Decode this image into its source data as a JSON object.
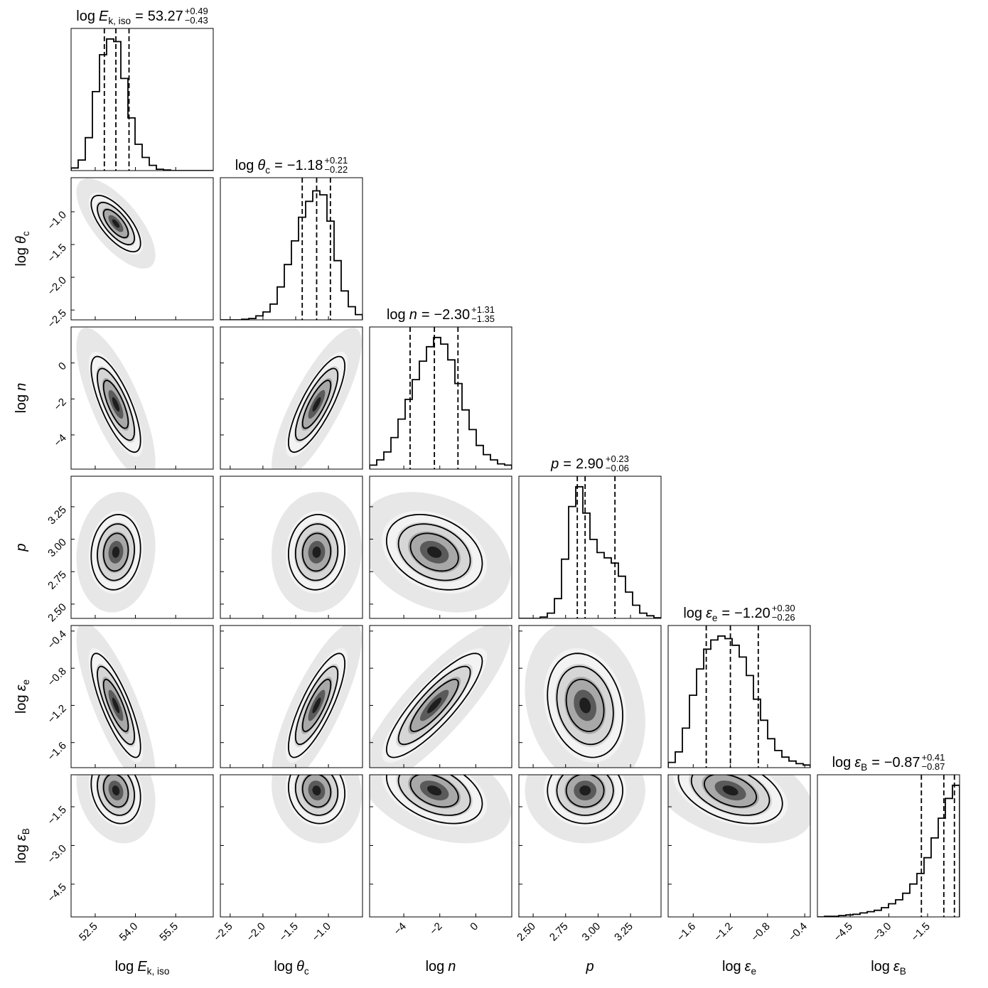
{
  "chart_data": {
    "type": "corner",
    "equals": "=",
    "hist_ylim": [
      0,
      1.08
    ],
    "params": [
      {
        "label": {
          "prefix": "log",
          "symbol": "E",
          "sub": "k, iso"
        },
        "median": 53.27,
        "plus": {
          "value": 0.49,
          "label": "+0.49"
        },
        "minus": {
          "value": -0.43,
          "label": "−0.43"
        },
        "lim": [
          51.6,
          56.9
        ],
        "ticks": [
          52.5,
          {
            "value": 54.0,
            "label": "54.0"
          },
          55.5
        ],
        "hist": [
          0.02,
          0.08,
          0.25,
          0.6,
          0.88,
          1.0,
          0.98,
          0.7,
          0.4,
          0.2,
          0.1,
          0.04,
          0.01,
          0.005,
          0,
          0,
          0,
          0,
          0,
          0
        ]
      },
      {
        "label": {
          "prefix": "log",
          "symbol": "θ",
          "sub": "c"
        },
        "median": {
          "value": -1.18,
          "label": "−1.18"
        },
        "plus": {
          "value": 0.21,
          "label": "+0.21"
        },
        "minus": {
          "value": -0.22,
          "label": "−0.22"
        },
        "lim": [
          -2.65,
          -0.48
        ],
        "ticks": [
          {
            "value": -2.5,
            "label": "−2.5"
          },
          {
            "value": -2.0,
            "label": "−2.0"
          },
          {
            "value": -1.5,
            "label": "−1.5"
          },
          {
            "value": -1.0,
            "label": "−1.0"
          }
        ],
        "hist": [
          0,
          0,
          0,
          0.005,
          0.01,
          0.03,
          0.06,
          0.12,
          0.25,
          0.42,
          0.6,
          0.78,
          0.9,
          0.98,
          0.95,
          0.75,
          0.45,
          0.22,
          0.1,
          0.04
        ]
      },
      {
        "label": {
          "prefix": "log",
          "symbol": "n"
        },
        "median": {
          "value": -2.3,
          "label": "−2.30"
        },
        "plus": {
          "value": 1.31,
          "label": "+1.31"
        },
        "minus": {
          "value": -1.35,
          "label": "−1.35"
        },
        "lim": [
          -5.9,
          2.0
        ],
        "ticks": [
          {
            "value": -4,
            "label": "−4"
          },
          {
            "value": -2,
            "label": "−2"
          },
          0
        ],
        "hist": [
          0.03,
          0.07,
          0.13,
          0.24,
          0.38,
          0.53,
          0.68,
          0.82,
          0.93,
          1.0,
          0.95,
          0.83,
          0.65,
          0.45,
          0.3,
          0.18,
          0.11,
          0.07,
          0.04,
          0.03
        ]
      },
      {
        "label": {
          "symbol": "p"
        },
        "median": {
          "value": 2.9,
          "label": "2.90"
        },
        "plus": {
          "value": 0.23,
          "label": "+0.23"
        },
        "minus": {
          "value": -0.06,
          "label": "−0.06"
        },
        "lim": [
          2.39,
          3.485
        ],
        "ticks": [
          {
            "value": 2.5,
            "label": "2.50"
          },
          2.75,
          {
            "value": 3.0,
            "label": "3.00"
          },
          3.25
        ],
        "hist": [
          0,
          0,
          0,
          0.01,
          0.04,
          0.15,
          0.45,
          0.85,
          1.0,
          0.8,
          0.6,
          0.5,
          0.46,
          0.42,
          0.32,
          0.2,
          0.1,
          0.04,
          0.02,
          0.005
        ]
      },
      {
        "label": {
          "prefix": "log",
          "symbol": "ε",
          "sub": "e"
        },
        "median": {
          "value": -1.2,
          "label": "−1.20"
        },
        "plus": {
          "value": 0.3,
          "label": "+0.30"
        },
        "minus": {
          "value": -0.26,
          "label": "−0.26"
        },
        "lim": [
          -1.87,
          -0.34
        ],
        "ticks": [
          {
            "value": -1.6,
            "label": "−1.6"
          },
          {
            "value": -1.2,
            "label": "−1.2"
          },
          {
            "value": -0.8,
            "label": "−0.8"
          },
          {
            "value": -0.4,
            "label": "−0.4"
          }
        ],
        "hist": [
          0.04,
          0.12,
          0.3,
          0.55,
          0.75,
          0.9,
          0.97,
          1.0,
          0.98,
          0.93,
          0.84,
          0.7,
          0.52,
          0.36,
          0.22,
          0.13,
          0.08,
          0.05,
          0.03,
          0.02
        ]
      },
      {
        "label": {
          "prefix": "log",
          "symbol": "ε",
          "sub": "B"
        },
        "median": {
          "value": -0.87,
          "label": "−0.87"
        },
        "plus": {
          "value": 0.41,
          "label": "+0.41"
        },
        "minus": {
          "value": -0.87,
          "label": "−0.87"
        },
        "lim": [
          -5.77,
          -0.26
        ],
        "ticks": [
          {
            "value": -4.5,
            "label": "−4.5"
          },
          {
            "value": -3.0,
            "label": "−3.0"
          },
          {
            "value": -1.5,
            "label": "−1.5"
          }
        ],
        "hist": [
          0,
          0.005,
          0.005,
          0.01,
          0.015,
          0.02,
          0.03,
          0.04,
          0.05,
          0.07,
          0.1,
          0.13,
          0.18,
          0.25,
          0.33,
          0.45,
          0.6,
          0.75,
          0.9,
          1.0
        ]
      }
    ],
    "correlations": [
      [
        -0.7
      ],
      [
        -0.75,
        0.8
      ],
      [
        0.1,
        0.05,
        -0.3
      ],
      [
        -0.8,
        0.8,
        0.85,
        -0.2
      ],
      [
        -0.2,
        -0.1,
        -0.4,
        0,
        -0.4
      ]
    ]
  }
}
